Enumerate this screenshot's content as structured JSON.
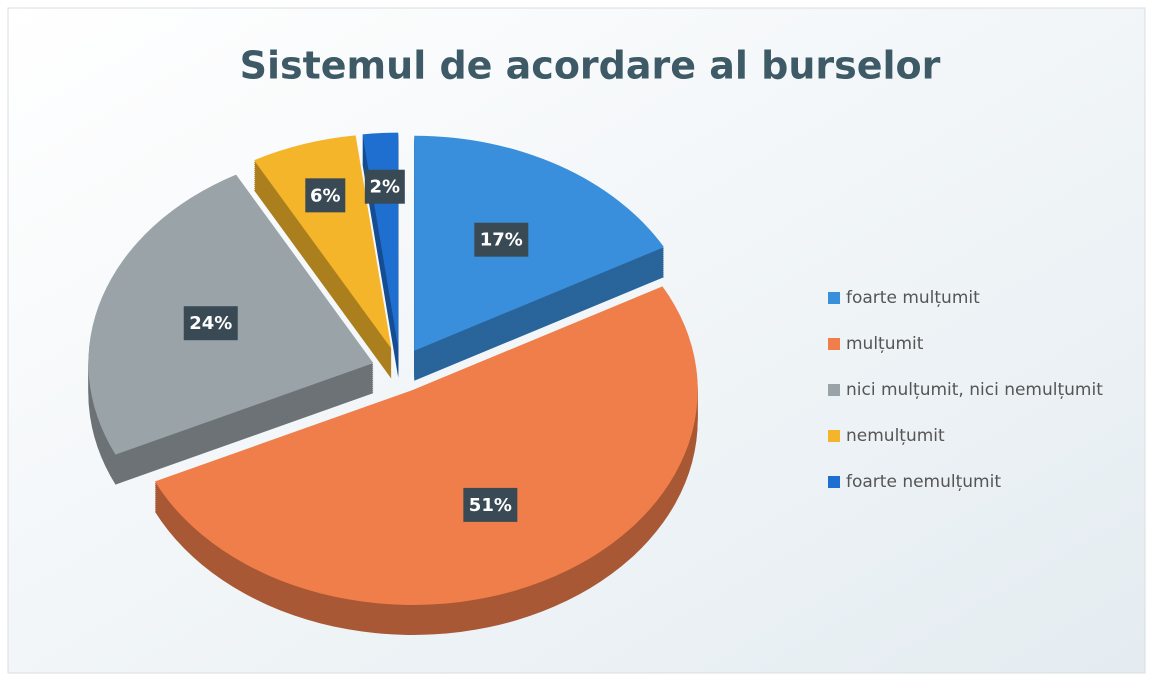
{
  "chart_data": {
    "type": "pie",
    "title": "Sistemul de acordare al burselor",
    "categories": [
      "foarte mulțumit",
      "mulțumit",
      "nici mulțumit, nici nemulțumit",
      "nemulțumit",
      "foarte nemulțumit"
    ],
    "values": [
      17,
      51,
      24,
      6,
      2
    ],
    "value_labels": [
      "17%",
      "51%",
      "24%",
      "6%",
      "2%"
    ],
    "colors": [
      "#3a8fdc",
      "#f07e4a",
      "#9aa3a8",
      "#f5b52b",
      "#1f6fd0"
    ],
    "legend": "right"
  }
}
